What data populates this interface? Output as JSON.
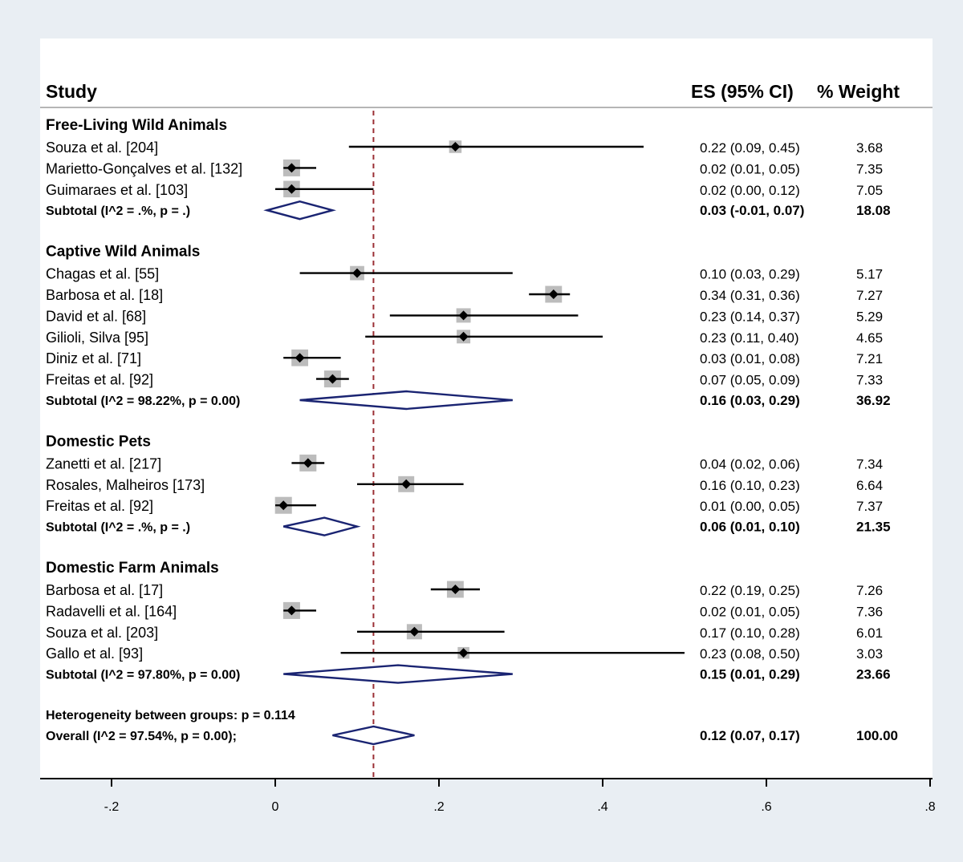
{
  "chart_data": {
    "type": "forest",
    "header": {
      "study": "Study",
      "es": "ES (95% CI)",
      "weight": "% Weight"
    },
    "reference_line": 0.12,
    "xlim": [
      -0.28,
      0.8
    ],
    "ticks": [
      {
        "value": -0.2,
        "label": "-.2"
      },
      {
        "value": 0,
        "label": "0"
      },
      {
        "value": 0.2,
        "label": ".2"
      },
      {
        "value": 0.4,
        "label": ".4"
      },
      {
        "value": 0.6,
        "label": ".6"
      },
      {
        "value": 0.8,
        "label": ".8"
      }
    ],
    "rows": [
      {
        "kind": "group",
        "label": "Free-Living Wild Animals"
      },
      {
        "kind": "study",
        "label": "Souza et al. [204]",
        "es": 0.22,
        "lo": 0.09,
        "hi": 0.45,
        "ci": "0.22 (0.09, 0.45)",
        "weight": "3.68"
      },
      {
        "kind": "study",
        "label": "Marietto-Gonçalves et al. [132]",
        "es": 0.02,
        "lo": 0.01,
        "hi": 0.05,
        "ci": "0.02 (0.01, 0.05)",
        "weight": "7.35"
      },
      {
        "kind": "study",
        "label": "Guimaraes et al. [103]",
        "es": 0.02,
        "lo": 0.0,
        "hi": 0.12,
        "ci": "0.02 (0.00, 0.12)",
        "weight": "7.05"
      },
      {
        "kind": "subtotal",
        "label": "Subtotal  (I^2 = .%, p = .)",
        "es": 0.03,
        "lo": -0.01,
        "hi": 0.07,
        "ci": "0.03 (-0.01, 0.07)",
        "weight": "18.08"
      },
      {
        "kind": "spacer"
      },
      {
        "kind": "group",
        "label": "Captive Wild Animals"
      },
      {
        "kind": "study",
        "label": "Chagas et al. [55]",
        "es": 0.1,
        "lo": 0.03,
        "hi": 0.29,
        "ci": "0.10 (0.03, 0.29)",
        "weight": "5.17"
      },
      {
        "kind": "study",
        "label": "Barbosa et al. [18]",
        "es": 0.34,
        "lo": 0.31,
        "hi": 0.36,
        "ci": "0.34 (0.31, 0.36)",
        "weight": "7.27"
      },
      {
        "kind": "study",
        "label": "David et al. [68]",
        "es": 0.23,
        "lo": 0.14,
        "hi": 0.37,
        "ci": "0.23 (0.14, 0.37)",
        "weight": "5.29"
      },
      {
        "kind": "study",
        "label": "Gilioli, Silva [95]",
        "es": 0.23,
        "lo": 0.11,
        "hi": 0.4,
        "ci": "0.23 (0.11, 0.40)",
        "weight": "4.65"
      },
      {
        "kind": "study",
        "label": "Diniz et al. [71]",
        "es": 0.03,
        "lo": 0.01,
        "hi": 0.08,
        "ci": "0.03 (0.01, 0.08)",
        "weight": "7.21"
      },
      {
        "kind": "study",
        "label": "Freitas et al. [92]",
        "es": 0.07,
        "lo": 0.05,
        "hi": 0.09,
        "ci": "0.07 (0.05, 0.09)",
        "weight": "7.33"
      },
      {
        "kind": "subtotal",
        "label": "Subtotal  (I^2 = 98.22%, p = 0.00)",
        "es": 0.16,
        "lo": 0.03,
        "hi": 0.29,
        "ci": "0.16 (0.03, 0.29)",
        "weight": "36.92"
      },
      {
        "kind": "spacer"
      },
      {
        "kind": "group",
        "label": "Domestic Pets"
      },
      {
        "kind": "study",
        "label": "Zanetti et al. [217]",
        "es": 0.04,
        "lo": 0.02,
        "hi": 0.06,
        "ci": "0.04 (0.02, 0.06)",
        "weight": "7.34"
      },
      {
        "kind": "study",
        "label": "Rosales, Malheiros [173]",
        "es": 0.16,
        "lo": 0.1,
        "hi": 0.23,
        "ci": "0.16 (0.10, 0.23)",
        "weight": "6.64"
      },
      {
        "kind": "study",
        "label": "Freitas et al. [92]",
        "es": 0.01,
        "lo": 0.0,
        "hi": 0.05,
        "ci": "0.01 (0.00, 0.05)",
        "weight": "7.37"
      },
      {
        "kind": "subtotal",
        "label": "Subtotal  (I^2 = .%, p = .)",
        "es": 0.06,
        "lo": 0.01,
        "hi": 0.1,
        "ci": "0.06 (0.01, 0.10)",
        "weight": "21.35"
      },
      {
        "kind": "spacer"
      },
      {
        "kind": "group",
        "label": "Domestic Farm Animals"
      },
      {
        "kind": "study",
        "label": "Barbosa et al. [17]",
        "es": 0.22,
        "lo": 0.19,
        "hi": 0.25,
        "ci": "0.22 (0.19, 0.25)",
        "weight": "7.26"
      },
      {
        "kind": "study",
        "label": "Radavelli et al. [164]",
        "es": 0.02,
        "lo": 0.01,
        "hi": 0.05,
        "ci": "0.02 (0.01, 0.05)",
        "weight": "7.36"
      },
      {
        "kind": "study",
        "label": "Souza et al. [203]",
        "es": 0.17,
        "lo": 0.1,
        "hi": 0.28,
        "ci": "0.17 (0.10, 0.28)",
        "weight": "6.01"
      },
      {
        "kind": "study",
        "label": "Gallo et al. [93]",
        "es": 0.23,
        "lo": 0.08,
        "hi": 0.5,
        "ci": "0.23 (0.08, 0.50)",
        "weight": "3.03"
      },
      {
        "kind": "subtotal",
        "label": "Subtotal  (I^2 = 97.80%, p = 0.00)",
        "es": 0.15,
        "lo": 0.01,
        "hi": 0.29,
        "ci": "0.15 (0.01, 0.29)",
        "weight": "23.66"
      },
      {
        "kind": "spacer"
      },
      {
        "kind": "note",
        "label": "Heterogeneity between groups: p = 0.114"
      },
      {
        "kind": "overall",
        "label": "Overall  (I^2 = 97.54%, p = 0.00);",
        "es": 0.12,
        "lo": 0.07,
        "hi": 0.17,
        "ci": "0.12 (0.07, 0.17)",
        "weight": "100.00"
      }
    ]
  },
  "colors": {
    "background": "#e9eef3",
    "panel": "#ffffff",
    "reference_line": "#9b2f35",
    "diamond": "#1a2472",
    "box": "#bcbcbc",
    "line": "#000000"
  }
}
